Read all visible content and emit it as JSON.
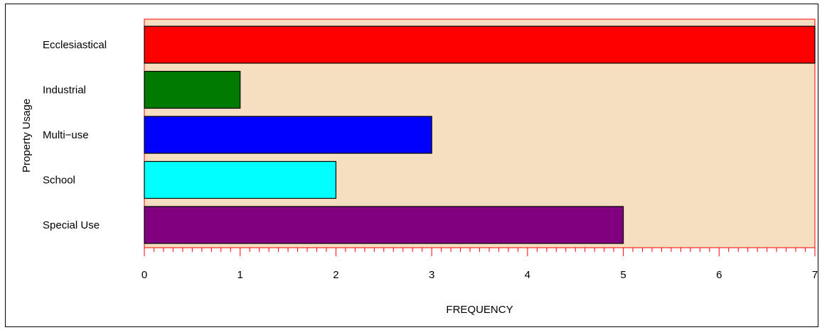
{
  "chart_data": {
    "type": "bar",
    "orientation": "horizontal",
    "categories": [
      "Ecclesiastical",
      "Industrial",
      "Multi−use",
      "School",
      "Special Use"
    ],
    "values": [
      7,
      1,
      3,
      2,
      5
    ],
    "colors": [
      "#ff0000",
      "#007a00",
      "#0000ff",
      "#00ffff",
      "#800080"
    ],
    "xlabel": "FREQUENCY",
    "ylabel": "Property Usage",
    "xlim": [
      0,
      7
    ],
    "xticks": [
      "0",
      "1",
      "2",
      "3",
      "4",
      "5",
      "6",
      "7"
    ],
    "minor_ticks_per_unit": 10,
    "plot_background": "#f5dfc0",
    "frame_color": "#ff0000",
    "bar_outline_color": "#000000",
    "grid": false,
    "legend": "none"
  }
}
